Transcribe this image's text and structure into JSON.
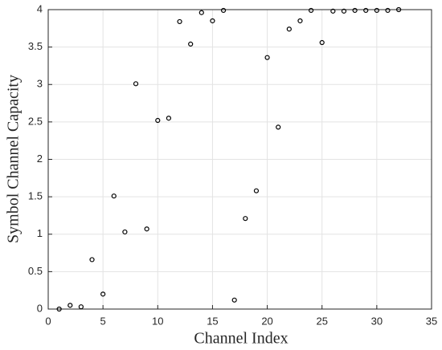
{
  "chart_data": {
    "type": "scatter",
    "xlabel": "Channel Index",
    "ylabel": "Symbol Channel Capacity",
    "x": [
      1,
      2,
      3,
      4,
      5,
      6,
      7,
      8,
      9,
      10,
      11,
      12,
      13,
      14,
      15,
      16,
      17,
      18,
      19,
      20,
      21,
      22,
      23,
      24,
      25,
      26,
      27,
      28,
      29,
      30,
      31,
      32
    ],
    "series": [
      {
        "color": "#000000",
        "values": [
          0.0,
          0.05,
          0.03,
          0.66,
          0.2,
          1.51,
          1.03,
          3.01,
          1.07,
          2.52,
          2.55,
          3.84,
          3.54,
          3.96,
          3.85,
          3.99,
          0.12,
          1.21,
          1.58,
          3.36,
          2.43,
          3.74,
          3.85,
          3.99,
          3.56,
          3.98,
          3.98,
          3.99,
          3.99,
          3.99,
          3.99,
          4.0
        ]
      }
    ],
    "xlim": [
      0,
      35
    ],
    "xticks": [
      0,
      5,
      10,
      15,
      20,
      25,
      30,
      35
    ],
    "ylim": [
      0,
      4
    ],
    "yticks": [
      0,
      0.5,
      1,
      1.5,
      2,
      2.5,
      3,
      3.5,
      4
    ],
    "grid": true
  }
}
